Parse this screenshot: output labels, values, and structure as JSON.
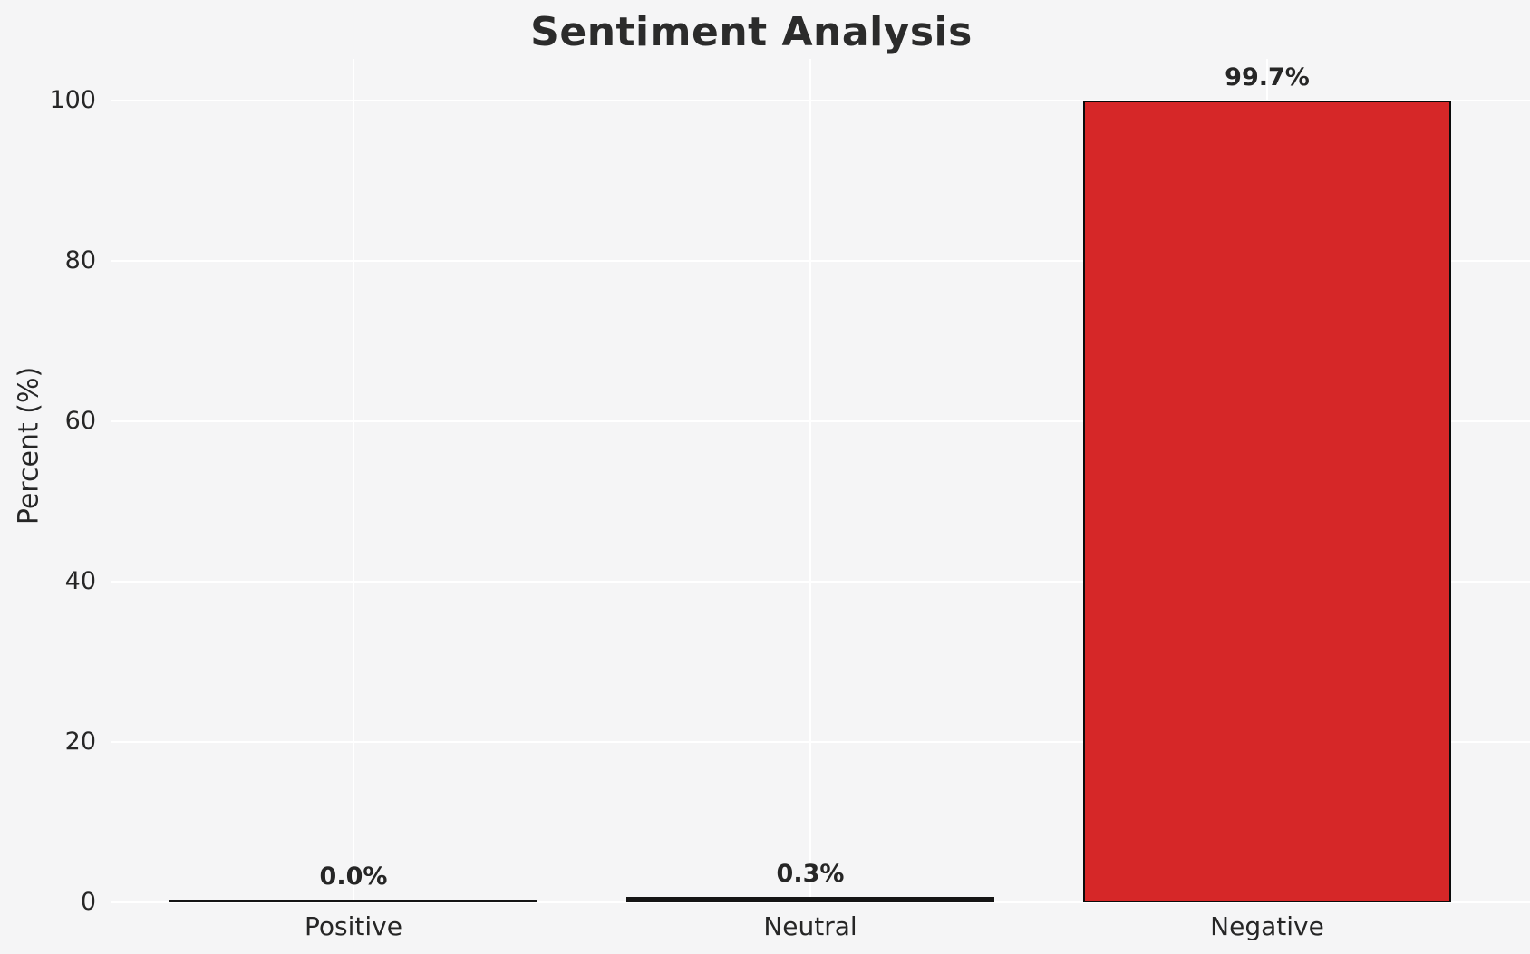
{
  "chart_data": {
    "type": "bar",
    "title": "Sentiment Analysis",
    "xlabel": "",
    "ylabel": "Percent (%)",
    "categories": [
      "Positive",
      "Neutral",
      "Negative"
    ],
    "values": [
      0.0,
      0.3,
      99.7
    ],
    "bars": [
      {
        "category": "Positive",
        "value": 0.0,
        "label": "0.0%"
      },
      {
        "category": "Neutral",
        "value": 0.3,
        "label": "0.3%"
      },
      {
        "category": "Negative",
        "value": 99.7,
        "label": "99.7%"
      }
    ],
    "yticks": [
      0,
      20,
      40,
      60,
      80,
      100
    ],
    "ylim": [
      0,
      105
    ],
    "grid": "on",
    "legend": "none",
    "colors": {
      "background": "#f5f5f6",
      "grid": "#ffffff",
      "bar_negative": "#d62728",
      "bar_edge": "#0b0b0b",
      "thin_bar_line": "#151515",
      "text": "#262626",
      "title": "#2b2b2b"
    }
  }
}
